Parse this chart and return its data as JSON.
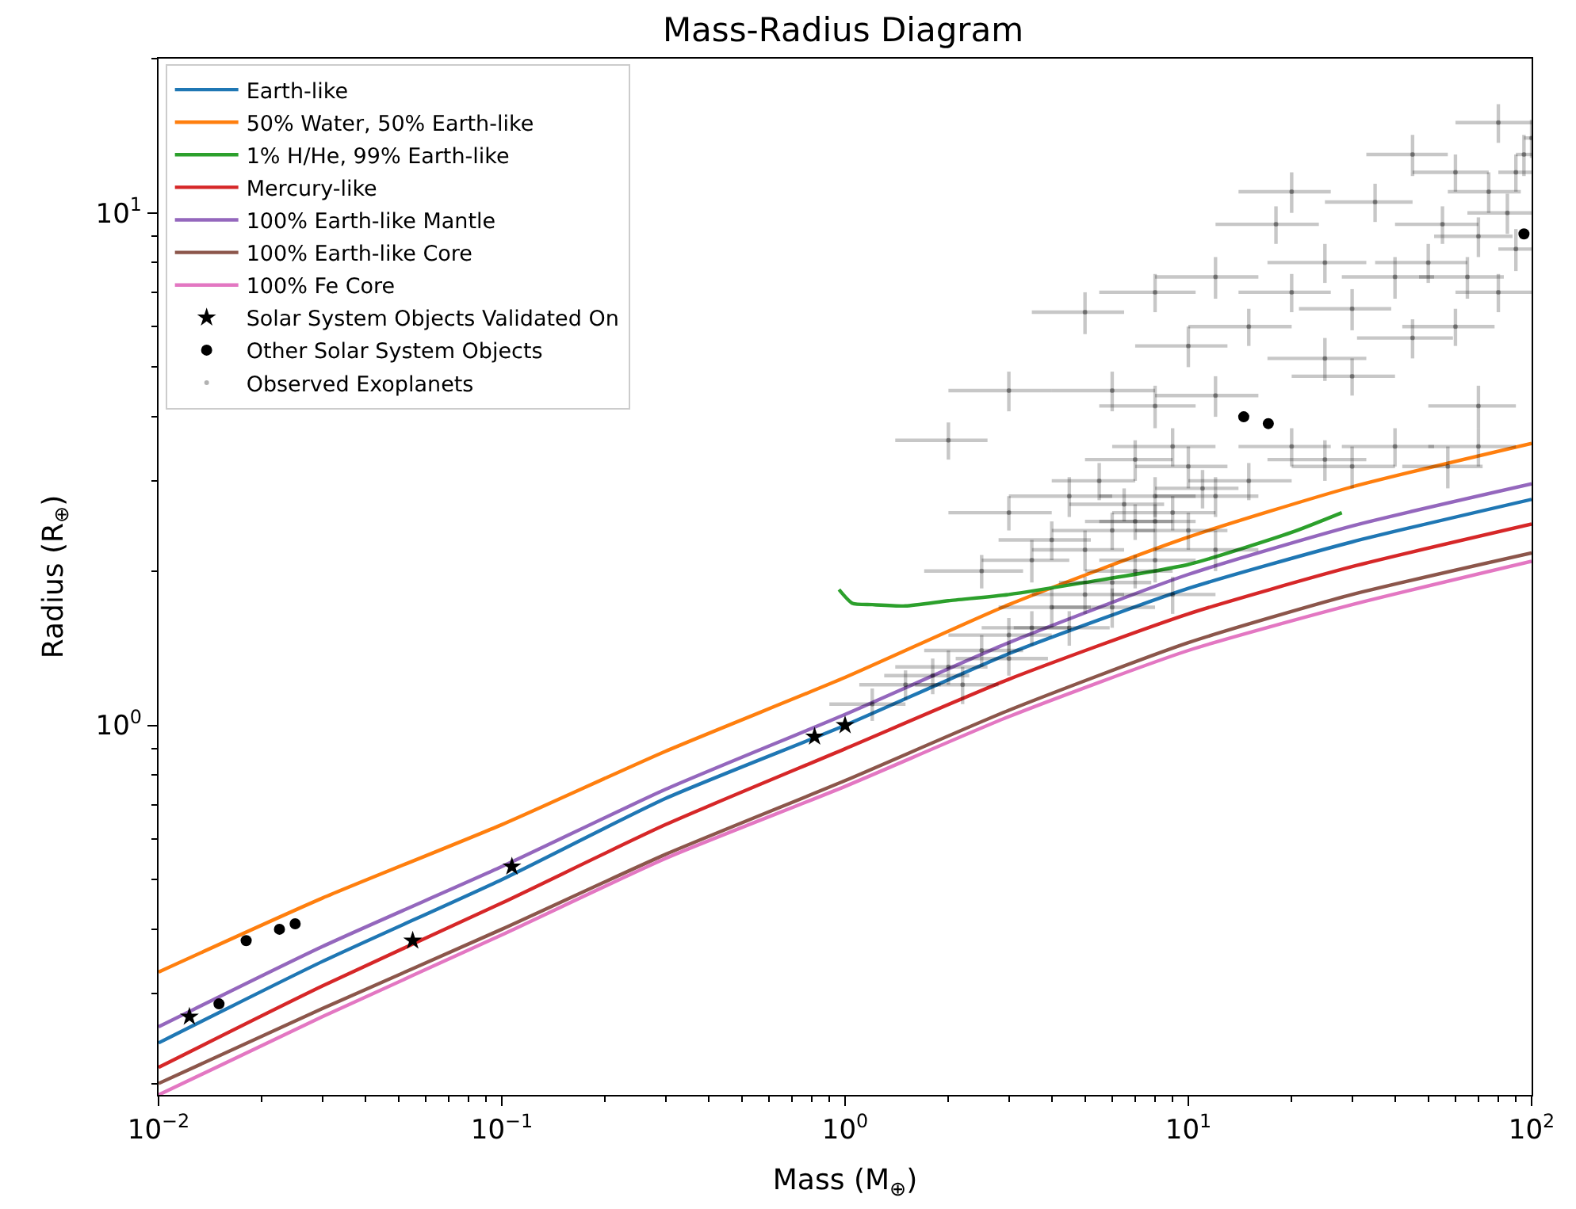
{
  "chart_data": {
    "type": "line",
    "title": "Mass-Radius Diagram",
    "xlabel": "Mass (M$_{⊕}$)",
    "ylabel": "Radius (R$_{⊕}$)",
    "log": "xy",
    "legend": "top left",
    "xlim": [
      0.01,
      100
    ],
    "ylim": [
      0.19,
      20
    ],
    "xticks": [
      {
        "value": 0.01,
        "label": "10$^{−2}$"
      },
      {
        "value": 0.1,
        "label": "10$^{−1}$"
      },
      {
        "value": 1,
        "label": "10$^{0}$"
      },
      {
        "value": 10,
        "label": "10$^{1}$"
      },
      {
        "value": 100,
        "label": "10$^{2}$"
      },
      {
        "value": 0.02,
        "label": null
      },
      {
        "value": 0.03,
        "label": null
      },
      {
        "value": 0.04,
        "label": null
      },
      {
        "value": 0.05,
        "label": null
      },
      {
        "value": 0.06,
        "label": null
      },
      {
        "value": 0.07,
        "label": null
      },
      {
        "value": 0.08,
        "label": null
      },
      {
        "value": 0.09,
        "label": null
      },
      {
        "value": 0.2,
        "label": null
      },
      {
        "value": 0.3,
        "label": null
      },
      {
        "value": 0.4,
        "label": null
      },
      {
        "value": 0.5,
        "label": null
      },
      {
        "value": 0.6,
        "label": null
      },
      {
        "value": 0.7,
        "label": null
      },
      {
        "value": 0.8,
        "label": null
      },
      {
        "value": 0.9,
        "label": null
      },
      {
        "value": 2,
        "label": null
      },
      {
        "value": 3,
        "label": null
      },
      {
        "value": 4,
        "label": null
      },
      {
        "value": 5,
        "label": null
      },
      {
        "value": 6,
        "label": null
      },
      {
        "value": 7,
        "label": null
      },
      {
        "value": 8,
        "label": null
      },
      {
        "value": 9,
        "label": null
      },
      {
        "value": 20,
        "label": null
      },
      {
        "value": 30,
        "label": null
      },
      {
        "value": 40,
        "label": null
      },
      {
        "value": 50,
        "label": null
      },
      {
        "value": 60,
        "label": null
      },
      {
        "value": 70,
        "label": null
      },
      {
        "value": 80,
        "label": null
      },
      {
        "value": 90,
        "label": null
      }
    ],
    "yticks": [
      {
        "value": 1,
        "label": "10$^{0}$"
      },
      {
        "value": 10,
        "label": "10$^{1}$"
      },
      {
        "value": 0.2,
        "label": null
      },
      {
        "value": 0.3,
        "label": null
      },
      {
        "value": 0.4,
        "label": null
      },
      {
        "value": 0.5,
        "label": null
      },
      {
        "value": 0.6,
        "label": null
      },
      {
        "value": 0.7,
        "label": null
      },
      {
        "value": 0.8,
        "label": null
      },
      {
        "value": 0.9,
        "label": null
      },
      {
        "value": 2,
        "label": null
      },
      {
        "value": 3,
        "label": null
      },
      {
        "value": 4,
        "label": null
      },
      {
        "value": 5,
        "label": null
      },
      {
        "value": 6,
        "label": null
      },
      {
        "value": 7,
        "label": null
      },
      {
        "value": 8,
        "label": null
      },
      {
        "value": 9,
        "label": null
      },
      {
        "value": 20,
        "label": null
      }
    ],
    "series": [
      {
        "name": "Earth-like",
        "marker": "none",
        "color": "#1f77b4",
        "x": [
          0.01,
          0.03,
          0.1,
          0.3,
          1,
          3,
          10,
          30,
          100
        ],
        "values": [
          0.24,
          0.346,
          0.5,
          0.72,
          1.0,
          1.38,
          1.85,
          2.28,
          2.76
        ]
      },
      {
        "name": "50% Water, 50% Earth-like",
        "marker": "none",
        "color": "#ff7f0e",
        "x": [
          0.01,
          0.03,
          0.1,
          0.3,
          1,
          3,
          10,
          30,
          100
        ],
        "values": [
          0.33,
          0.46,
          0.64,
          0.89,
          1.24,
          1.72,
          2.33,
          2.92,
          3.55
        ]
      },
      {
        "name": "1% H/He, 99% Earth-like",
        "marker": "none",
        "color": "#2ca02c",
        "x": [
          0.96,
          1.05,
          1.2,
          1.5,
          2,
          3,
          5,
          10,
          20,
          28
        ],
        "values": [
          1.84,
          1.73,
          1.72,
          1.71,
          1.75,
          1.8,
          1.9,
          2.06,
          2.38,
          2.6
        ]
      },
      {
        "name": "Mercury-like",
        "marker": "none",
        "color": "#d62728",
        "x": [
          0.01,
          0.03,
          0.1,
          0.3,
          1,
          3,
          10,
          30,
          100
        ],
        "values": [
          0.215,
          0.31,
          0.45,
          0.64,
          0.9,
          1.23,
          1.65,
          2.04,
          2.47
        ]
      },
      {
        "name": "100% Earth-like Mantle",
        "marker": "none",
        "color": "#9467bd",
        "x": [
          0.01,
          0.03,
          0.1,
          0.3,
          1,
          3,
          10,
          30,
          100
        ],
        "values": [
          0.258,
          0.37,
          0.53,
          0.75,
          1.05,
          1.45,
          1.97,
          2.45,
          2.96
        ]
      },
      {
        "name": "100% Earth-like Core",
        "marker": "none",
        "color": "#8c564b",
        "x": [
          0.01,
          0.03,
          0.1,
          0.3,
          1,
          3,
          10,
          30,
          100
        ],
        "values": [
          0.2,
          0.28,
          0.4,
          0.56,
          0.78,
          1.07,
          1.45,
          1.8,
          2.17
        ]
      },
      {
        "name": "100% Fe Core",
        "marker": "none",
        "color": "#e377c2",
        "x": [
          0.01,
          0.03,
          0.1,
          0.3,
          1,
          3,
          10,
          30,
          100
        ],
        "values": [
          0.19,
          0.27,
          0.39,
          0.55,
          0.76,
          1.04,
          1.4,
          1.72,
          2.09
        ]
      },
      {
        "name": "Solar System Objects Validated On",
        "type": "scatter",
        "marker": "star",
        "color": "#000000",
        "x": [
          0.0123,
          0.055,
          0.107,
          0.815,
          1
        ],
        "values": [
          0.27,
          0.38,
          0.53,
          0.95,
          1.0
        ]
      },
      {
        "name": "Other Solar System Objects",
        "type": "scatter",
        "marker": "circle",
        "color": "#000000",
        "x": [
          0.015,
          0.018,
          0.0225,
          0.025,
          14.5,
          17.1,
          95
        ],
        "values": [
          0.286,
          0.38,
          0.4,
          0.41,
          4.0,
          3.88,
          9.1
        ]
      },
      {
        "name": "Observed Exoplanets",
        "type": "scatter",
        "marker": "circle",
        "color": "#000000",
        "x": [
          1.2,
          1.5,
          1.8,
          2,
          2.2,
          2.5,
          3,
          3,
          3.5,
          4,
          4.5,
          5,
          6,
          6,
          7,
          8,
          9,
          12,
          4,
          5,
          6,
          6.5,
          7,
          8,
          8,
          9,
          10,
          11,
          12,
          15,
          10,
          7,
          5.5,
          3,
          2.5,
          4.5,
          9,
          3.5,
          6,
          8,
          12,
          20,
          25,
          30,
          40,
          57,
          70,
          10,
          15,
          20,
          25,
          30,
          40,
          50,
          35,
          18,
          8,
          5,
          3,
          2,
          25,
          45,
          60,
          80,
          70,
          85,
          90,
          95,
          60,
          75,
          100,
          80,
          90,
          55,
          65,
          45,
          20,
          12,
          30,
          70
        ],
        "values": [
          1.1,
          1.2,
          1.25,
          1.3,
          1.2,
          1.4,
          1.35,
          1.5,
          1.55,
          1.7,
          1.55,
          1.8,
          1.7,
          1.9,
          2.0,
          2.1,
          1.8,
          2.2,
          2.3,
          2.2,
          2.4,
          2.7,
          2.5,
          2.5,
          2.8,
          2.6,
          2.4,
          2.9,
          2.8,
          3.0,
          3.2,
          3.3,
          3.0,
          2.6,
          2.0,
          2.8,
          3.5,
          2.1,
          4.5,
          4.2,
          4.4,
          3.5,
          3.3,
          3.2,
          3.5,
          3.2,
          3.5,
          5.5,
          6.0,
          7.0,
          8.0,
          6.5,
          7.5,
          8.0,
          10.5,
          9.5,
          7.0,
          6.4,
          4.5,
          3.6,
          5.2,
          5.7,
          6.0,
          7.0,
          9.0,
          10.0,
          12.0,
          13.0,
          12.0,
          11.0,
          14.0,
          15.0,
          8.5,
          9.5,
          7.5,
          13.0,
          11.0,
          7.5,
          4.8,
          4.2
        ],
        "xerrors": [
          0.3,
          0.4,
          0.5,
          0.6,
          0.6,
          0.8,
          0.9,
          1,
          1,
          1.2,
          1.4,
          1.5,
          2,
          1.8,
          2,
          2.5,
          3,
          4,
          1.2,
          1.5,
          2,
          2,
          2,
          2.5,
          2.5,
          3,
          3,
          3,
          4,
          5,
          3,
          2,
          1.5,
          1,
          0.8,
          1.5,
          3,
          1,
          2,
          2.5,
          4,
          6,
          8,
          10,
          12,
          15,
          20,
          3,
          5,
          6,
          8,
          9,
          12,
          15,
          10,
          6,
          2.5,
          1.5,
          1,
          0.6,
          8,
          14,
          18,
          20,
          18,
          20,
          10,
          5,
          15,
          18,
          5,
          20,
          10,
          15,
          18,
          12,
          6,
          4,
          10,
          20
        ],
        "errors": [
          0.08,
          0.08,
          0.1,
          0.1,
          0.1,
          0.1,
          0.1,
          0.12,
          0.12,
          0.15,
          0.12,
          0.15,
          0.15,
          0.15,
          0.15,
          0.2,
          0.15,
          0.2,
          0.2,
          0.2,
          0.2,
          0.2,
          0.2,
          0.2,
          0.25,
          0.2,
          0.2,
          0.25,
          0.25,
          0.25,
          0.3,
          0.3,
          0.25,
          0.2,
          0.15,
          0.25,
          0.3,
          0.2,
          0.4,
          0.4,
          0.4,
          0.3,
          0.3,
          0.3,
          0.3,
          0.3,
          0.3,
          0.5,
          0.5,
          0.6,
          0.7,
          0.6,
          0.7,
          0.7,
          0.9,
          0.8,
          0.6,
          0.6,
          0.4,
          0.3,
          0.5,
          0.5,
          0.5,
          0.6,
          0.8,
          0.9,
          1.0,
          1.2,
          1.0,
          1.0,
          1.2,
          1.3,
          0.8,
          0.8,
          0.7,
          1.2,
          1.0,
          0.7,
          0.4,
          0.4
        ]
      }
    ]
  }
}
